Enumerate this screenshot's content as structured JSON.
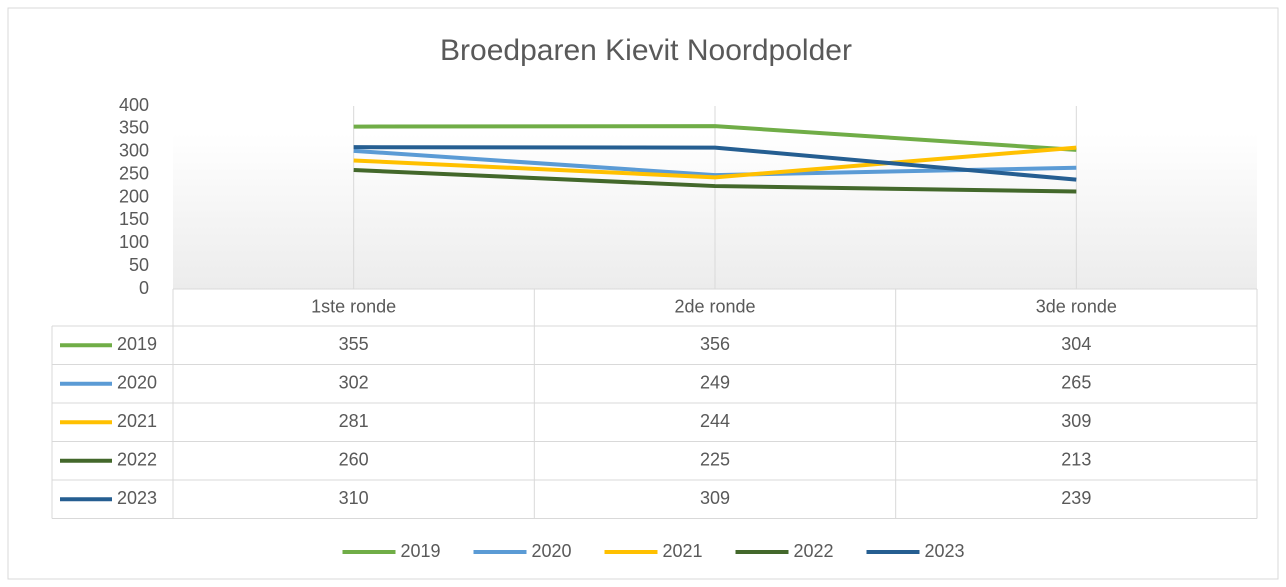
{
  "chart_data": {
    "type": "line",
    "title": "Broedparen Kievit Noordpolder",
    "categories": [
      "1ste ronde",
      "2de ronde",
      "3de ronde"
    ],
    "series": [
      {
        "name": "2019",
        "color": "#70ad47",
        "values": [
          355,
          356,
          304
        ]
      },
      {
        "name": "2020",
        "color": "#5b9bd5",
        "values": [
          302,
          249,
          265
        ]
      },
      {
        "name": "2021",
        "color": "#ffc000",
        "values": [
          281,
          244,
          309
        ]
      },
      {
        "name": "2022",
        "color": "#43682b",
        "values": [
          260,
          225,
          213
        ]
      },
      {
        "name": "2023",
        "color": "#255e91",
        "values": [
          310,
          309,
          239
        ]
      }
    ],
    "ylim": [
      0,
      400
    ],
    "yticks": [
      0,
      50,
      100,
      150,
      200,
      250,
      300,
      350,
      400
    ],
    "grid": true,
    "legend": "bottom",
    "data_table": true
  }
}
